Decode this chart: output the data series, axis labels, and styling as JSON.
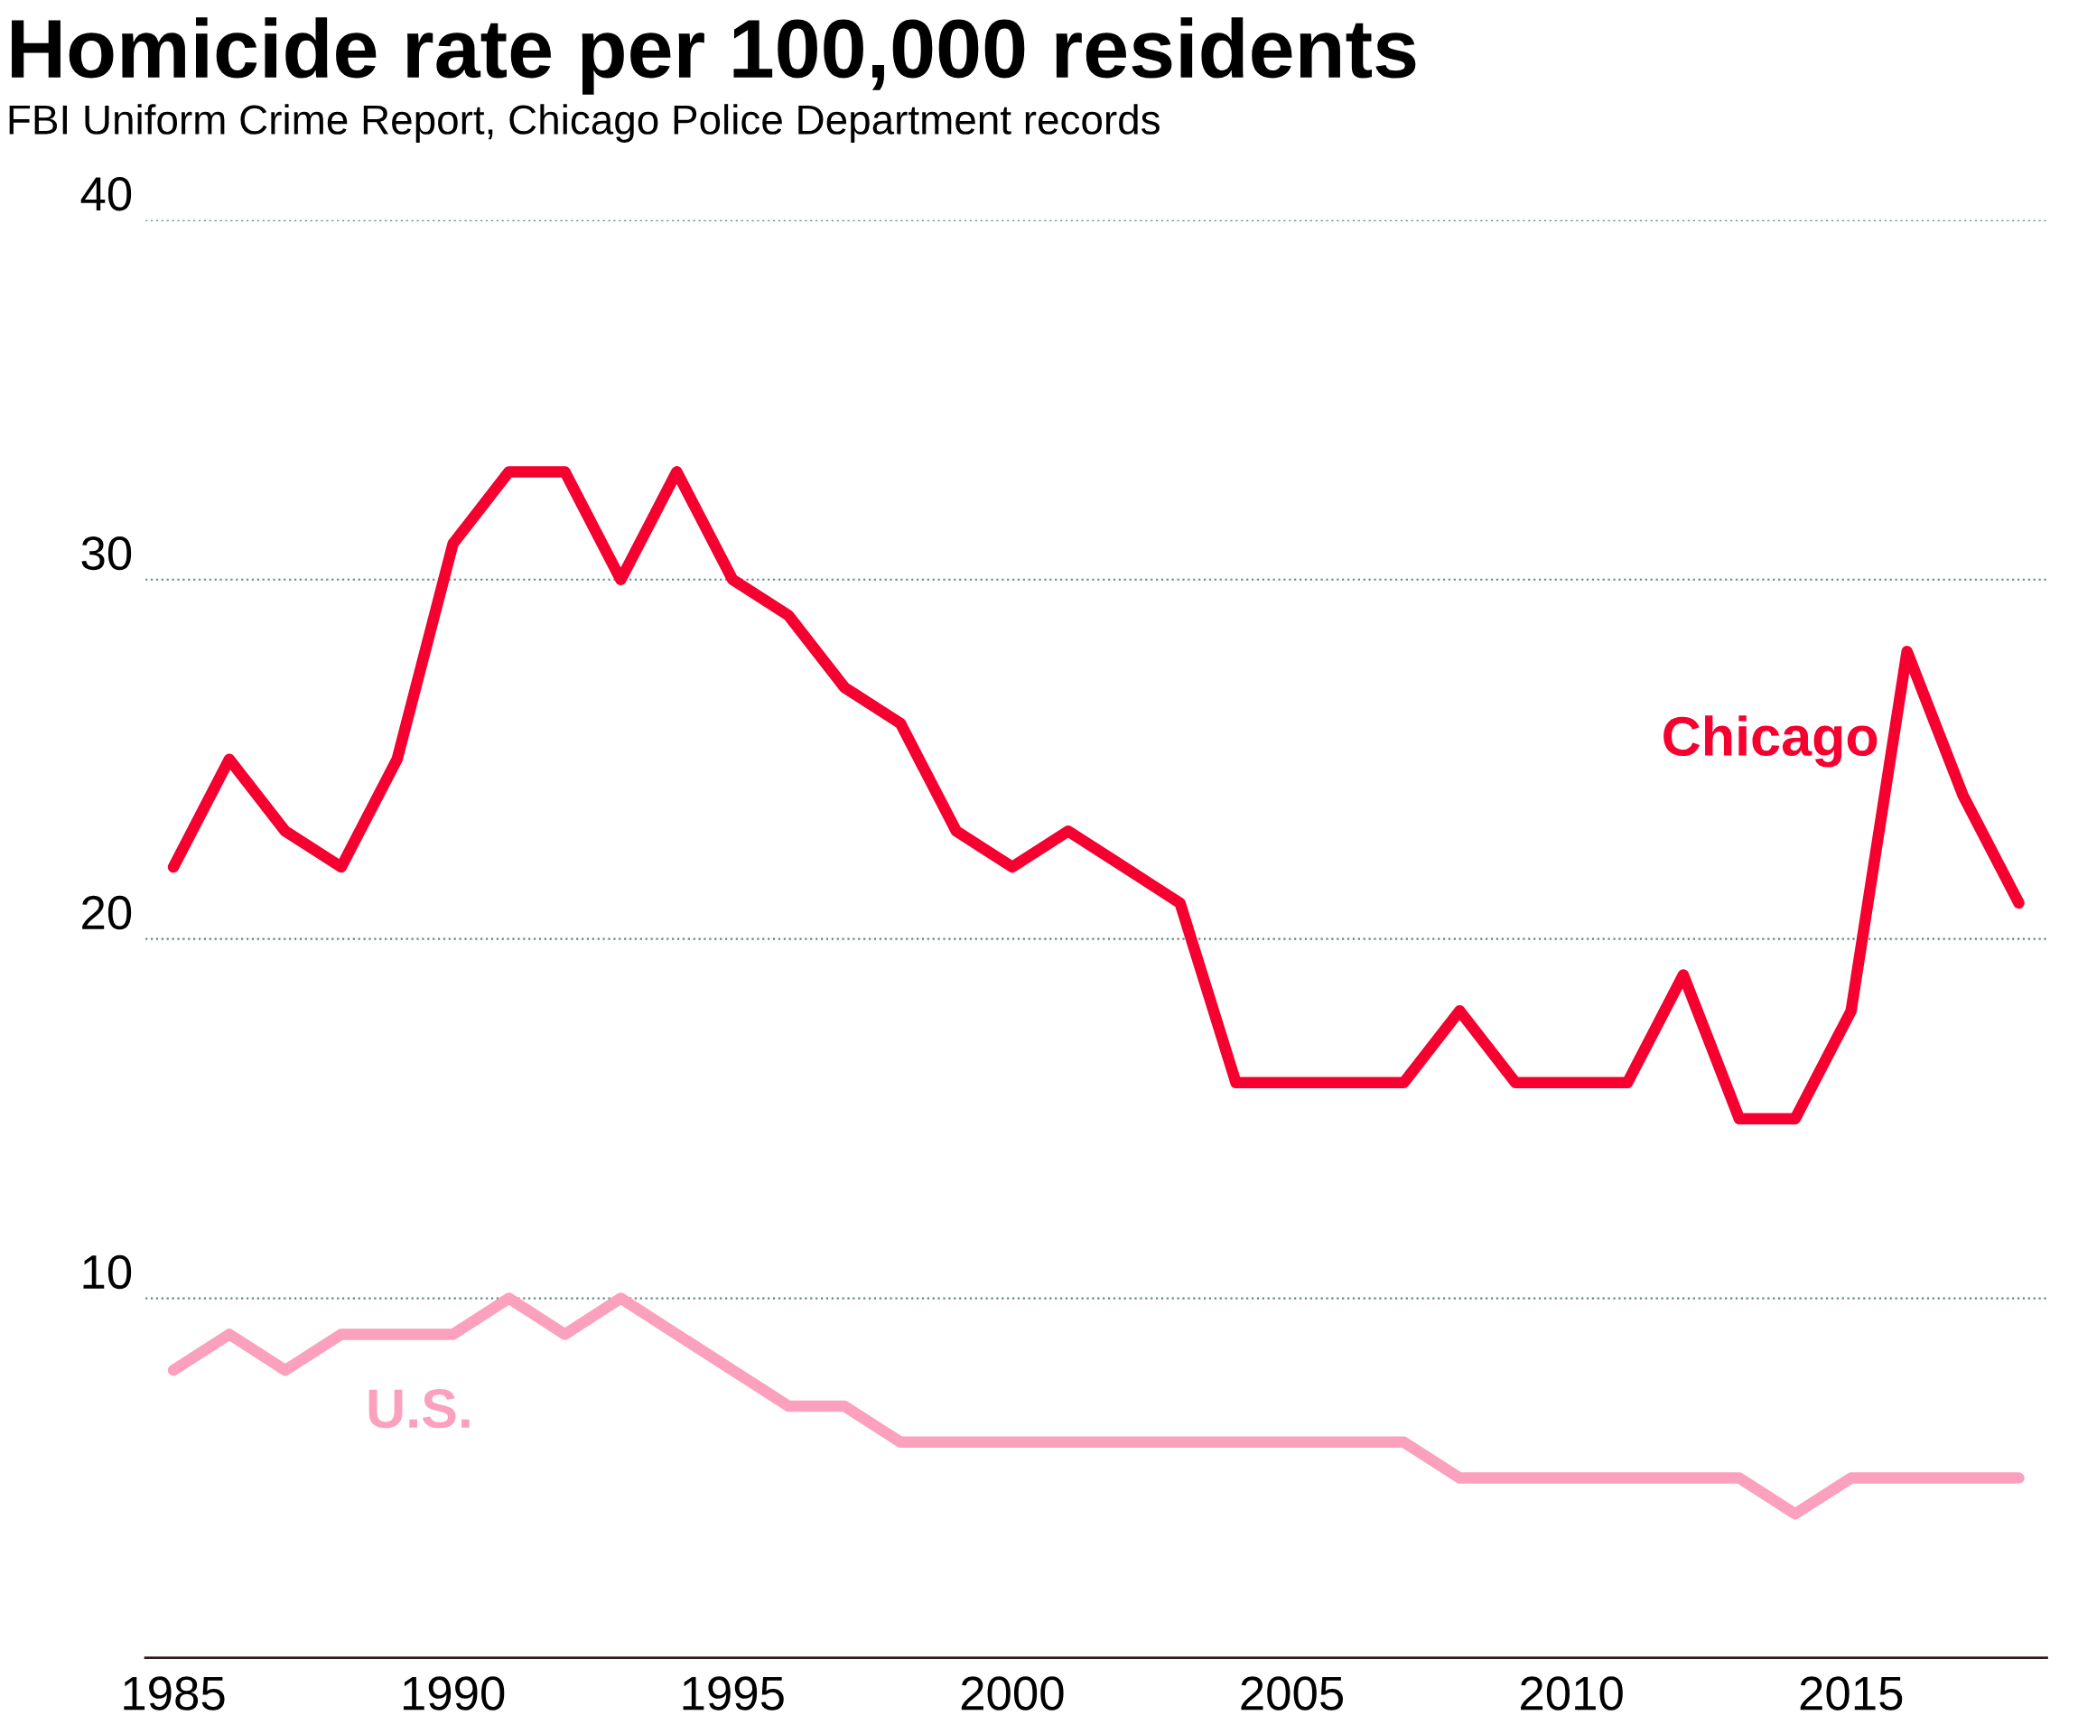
{
  "chart_data": {
    "type": "line",
    "title": "Homicide rate per 100,000 residents",
    "subtitle": "FBI Uniform Crime Report, Chicago Police Department records",
    "x": [
      1985,
      1986,
      1987,
      1988,
      1989,
      1990,
      1991,
      1992,
      1993,
      1994,
      1995,
      1996,
      1997,
      1998,
      1999,
      2000,
      2001,
      2002,
      2003,
      2004,
      2005,
      2006,
      2007,
      2008,
      2009,
      2010,
      2011,
      2012,
      2013,
      2014,
      2015,
      2016,
      2017,
      2018
    ],
    "series": [
      {
        "name": "Chicago",
        "color": "#f5002f",
        "values": [
          22,
          25,
          23,
          22,
          25,
          31,
          33,
          33,
          30,
          33,
          30,
          29,
          27,
          26,
          23,
          22,
          23,
          22,
          21,
          16,
          16,
          16,
          16,
          18,
          16,
          16,
          16,
          19,
          15,
          15,
          18,
          28,
          24,
          21
        ]
      },
      {
        "name": "U.S.",
        "color": "#fba1bd",
        "values": [
          8,
          9,
          8,
          9,
          9,
          9,
          10,
          9,
          10,
          9,
          8,
          7,
          7,
          6,
          6,
          6,
          6,
          6,
          6,
          6,
          6,
          6,
          6,
          5,
          5,
          5,
          5,
          5,
          5,
          4,
          5,
          5,
          5,
          5
        ]
      }
    ],
    "xlim": [
      1984.5,
      2018.5
    ],
    "ylim": [
      0,
      40
    ],
    "xticks": [
      1985,
      1990,
      1995,
      2000,
      2005,
      2010,
      2015
    ],
    "yticks": [
      10,
      20,
      30,
      40
    ],
    "grid": "y",
    "legend": false,
    "line_style": "solid"
  }
}
